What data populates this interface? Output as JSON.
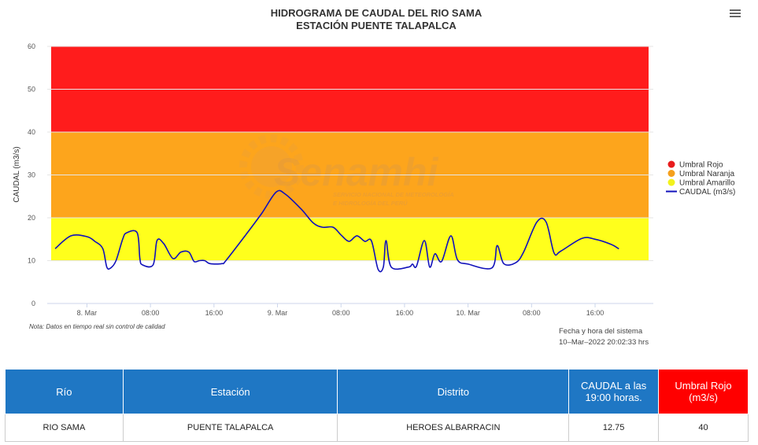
{
  "title": "HIDROGRAMA DE CAUDAL DEL RIO SAMA",
  "subtitle": "ESTACIÓN PUENTE TALAPALCA",
  "watermark": {
    "brand": "Senamhi",
    "line1": "SERVICIO NACIONAL DE METEOROLOGÍA",
    "line2": "E HIDROLOGÍA DEL PERÚ"
  },
  "note": "Nota: Datos en tiempo real sin control de calidad",
  "system_time": {
    "label": "Fecha y hora del sistema",
    "value": "10–Mar–2022 20:02:33 hrs"
  },
  "colors": {
    "rojo": "#ff1c1c",
    "naranja": "#fda51c",
    "amarillo": "#ffff1c",
    "line": "#1111bb",
    "header_blue": "#1f77c4",
    "header_red": "#ff0000"
  },
  "chart_data": {
    "type": "line",
    "title": "HIDROGRAMA DE CAUDAL DEL RIO SAMA",
    "subtitle": "ESTACIÓN PUENTE TALAPALCA",
    "ylabel": "CAUDAL (m3/s)",
    "ylim": [
      0,
      60
    ],
    "yticks": [
      0,
      10,
      20,
      30,
      40,
      50,
      60
    ],
    "xlim": [
      "2022-03-07 19:00",
      "2022-03-10 23:20"
    ],
    "xticks": [
      {
        "t": "2022-03-08 00:00",
        "label": "8. Mar"
      },
      {
        "t": "2022-03-08 08:00",
        "label": "08:00"
      },
      {
        "t": "2022-03-08 16:00",
        "label": "16:00"
      },
      {
        "t": "2022-03-09 00:00",
        "label": "9. Mar"
      },
      {
        "t": "2022-03-09 08:00",
        "label": "08:00"
      },
      {
        "t": "2022-03-09 16:00",
        "label": "16:00"
      },
      {
        "t": "2022-03-10 00:00",
        "label": "10. Mar"
      },
      {
        "t": "2022-03-10 08:00",
        "label": "08:00"
      },
      {
        "t": "2022-03-10 16:00",
        "label": "16:00"
      }
    ],
    "legend_position": "right",
    "bands": [
      {
        "name": "Umbral Rojo",
        "from": 40,
        "to": 60
      },
      {
        "name": "Umbral Naranja",
        "from": 20,
        "to": 40
      },
      {
        "name": "Umbral Amarillo",
        "from": 10,
        "to": 20
      }
    ],
    "series": [
      {
        "name": "CAUDAL (m3/s)",
        "points": [
          [
            "2022-03-07 20:00",
            12.8
          ],
          [
            "2022-03-07 22:00",
            15.8
          ],
          [
            "2022-03-08 00:00",
            15.6
          ],
          [
            "2022-03-08 01:00",
            14.5
          ],
          [
            "2022-03-08 02:00",
            12.8
          ],
          [
            "2022-03-08 02:30",
            8.5
          ],
          [
            "2022-03-08 03:00",
            8.3
          ],
          [
            "2022-03-08 03:40",
            10.0
          ],
          [
            "2022-03-08 04:30",
            15.0
          ],
          [
            "2022-03-08 05:00",
            16.5
          ],
          [
            "2022-03-08 06:20",
            16.5
          ],
          [
            "2022-03-08 06:40",
            10.5
          ],
          [
            "2022-03-08 07:00",
            9.0
          ],
          [
            "2022-03-08 08:20",
            9.0
          ],
          [
            "2022-03-08 08:50",
            14.7
          ],
          [
            "2022-03-08 09:40",
            14.0
          ],
          [
            "2022-03-08 10:50",
            10.5
          ],
          [
            "2022-03-08 11:50",
            12.0
          ],
          [
            "2022-03-08 12:50",
            12.0
          ],
          [
            "2022-03-08 13:30",
            9.8
          ],
          [
            "2022-03-08 14:10",
            10.0
          ],
          [
            "2022-03-08 14:50",
            10.0
          ],
          [
            "2022-03-08 15:30",
            9.3
          ],
          [
            "2022-03-08 17:00",
            9.3
          ],
          [
            "2022-03-08 17:30",
            10.0
          ],
          [
            "2022-03-08 20:00",
            16.0
          ],
          [
            "2022-03-08 22:00",
            21.0
          ],
          [
            "2022-03-08 23:50",
            26.0
          ],
          [
            "2022-03-09 01:00",
            25.5
          ],
          [
            "2022-03-09 03:00",
            22.0
          ],
          [
            "2022-03-09 04:30",
            18.8
          ],
          [
            "2022-03-09 05:40",
            17.8
          ],
          [
            "2022-03-09 07:00",
            17.8
          ],
          [
            "2022-03-09 08:00",
            16.0
          ],
          [
            "2022-03-09 09:00",
            14.5
          ],
          [
            "2022-03-09 10:00",
            15.8
          ],
          [
            "2022-03-09 11:00",
            14.5
          ],
          [
            "2022-03-09 11:50",
            14.6
          ],
          [
            "2022-03-09 12:40",
            8.0
          ],
          [
            "2022-03-09 13:20",
            8.5
          ],
          [
            "2022-03-09 13:40",
            14.7
          ],
          [
            "2022-03-09 14:20",
            8.5
          ],
          [
            "2022-03-09 16:30",
            8.5
          ],
          [
            "2022-03-09 17:00",
            9.2
          ],
          [
            "2022-03-09 17:30",
            8.7
          ],
          [
            "2022-03-09 18:30",
            14.7
          ],
          [
            "2022-03-09 19:10",
            8.5
          ],
          [
            "2022-03-09 19:50",
            11.6
          ],
          [
            "2022-03-09 20:40",
            9.8
          ],
          [
            "2022-03-09 21:50",
            15.8
          ],
          [
            "2022-03-09 22:40",
            10.2
          ],
          [
            "2022-03-10 00:00",
            9.2
          ],
          [
            "2022-03-10 03:00",
            8.3
          ],
          [
            "2022-03-10 03:40",
            13.5
          ],
          [
            "2022-03-10 04:30",
            9.3
          ],
          [
            "2022-03-10 06:00",
            9.5
          ],
          [
            "2022-03-10 07:00",
            12.0
          ],
          [
            "2022-03-10 08:40",
            19.0
          ],
          [
            "2022-03-10 09:50",
            19.0
          ],
          [
            "2022-03-10 10:50",
            11.8
          ],
          [
            "2022-03-10 11:40",
            12.2
          ],
          [
            "2022-03-10 14:20",
            15.2
          ],
          [
            "2022-03-10 16:00",
            15.0
          ],
          [
            "2022-03-10 18:00",
            13.8
          ],
          [
            "2022-03-10 19:00",
            12.75
          ]
        ]
      }
    ]
  },
  "legend": [
    {
      "label": "Umbral Rojo",
      "kind": "dot",
      "color": "#e81c1c"
    },
    {
      "label": "Umbral Naranja",
      "kind": "dot",
      "color": "#f5a01c"
    },
    {
      "label": "Umbral Amarillo",
      "kind": "dot",
      "color": "#f2f21c"
    },
    {
      "label": "CAUDAL (m3/s)",
      "kind": "line",
      "color": "#1111bb"
    }
  ],
  "table": {
    "headers": [
      "Río",
      "Estación",
      "Distrito",
      "CAUDAL a las 19:00 horas.",
      "Umbral Rojo (m3/s)"
    ],
    "row": [
      "RIO SAMA",
      "PUENTE TALAPALCA",
      "HEROES ALBARRACIN",
      "12.75",
      "40"
    ]
  }
}
